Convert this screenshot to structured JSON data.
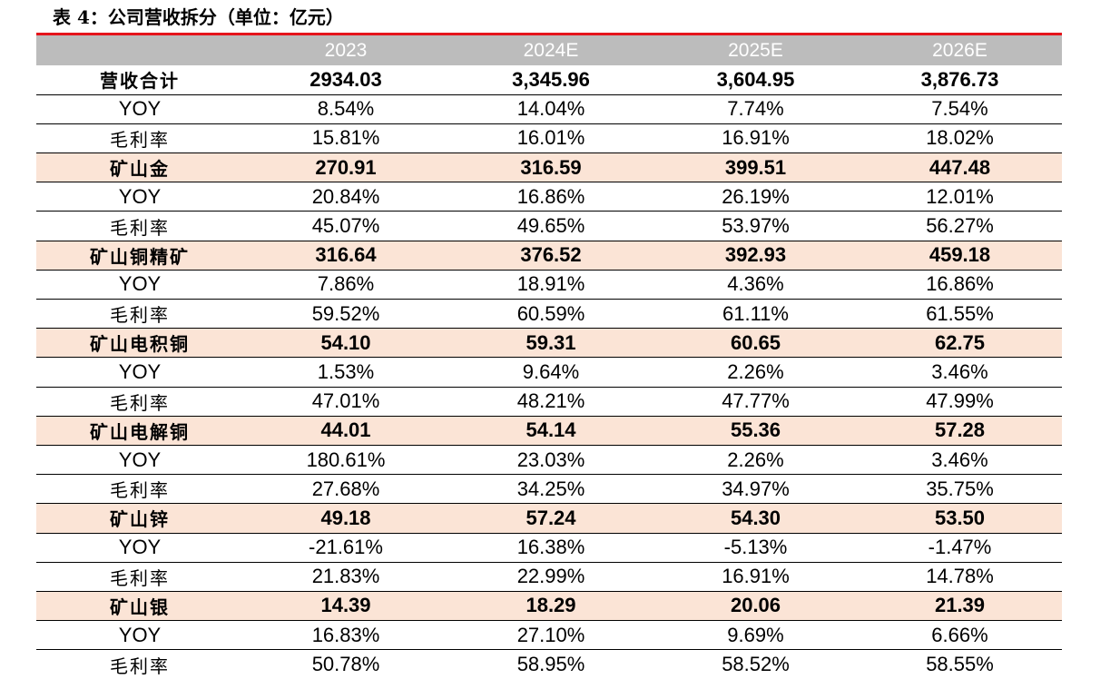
{
  "title": "表 4：公司营收拆分（单位：亿元）",
  "header": [
    "",
    "2023",
    "2024E",
    "2025E",
    "2026E"
  ],
  "rows": [
    {
      "label": "营收合计",
      "kind": "total",
      "values": [
        "2934.03",
        "3,345.96",
        "3,604.95",
        "3,876.73"
      ]
    },
    {
      "label": "YOY",
      "kind": "yoy",
      "values": [
        "8.54%",
        "14.04%",
        "7.74%",
        "7.54%"
      ]
    },
    {
      "label": "毛利率",
      "kind": "margin",
      "values": [
        "15.81%",
        "16.01%",
        "16.91%",
        "18.02%"
      ]
    },
    {
      "label": "矿山金",
      "kind": "segment",
      "values": [
        "270.91",
        "316.59",
        "399.51",
        "447.48"
      ]
    },
    {
      "label": "YOY",
      "kind": "yoy",
      "values": [
        "20.84%",
        "16.86%",
        "26.19%",
        "12.01%"
      ]
    },
    {
      "label": "毛利率",
      "kind": "margin",
      "values": [
        "45.07%",
        "49.65%",
        "53.97%",
        "56.27%"
      ]
    },
    {
      "label": "矿山铜精矿",
      "kind": "segment",
      "values": [
        "316.64",
        "376.52",
        "392.93",
        "459.18"
      ]
    },
    {
      "label": "YOY",
      "kind": "yoy",
      "values": [
        "7.86%",
        "18.91%",
        "4.36%",
        "16.86%"
      ]
    },
    {
      "label": "毛利率",
      "kind": "margin",
      "values": [
        "59.52%",
        "60.59%",
        "61.11%",
        "61.55%"
      ]
    },
    {
      "label": "矿山电积铜",
      "kind": "segment",
      "values": [
        "54.10",
        "59.31",
        "60.65",
        "62.75"
      ]
    },
    {
      "label": "YOY",
      "kind": "yoy",
      "values": [
        "1.53%",
        "9.64%",
        "2.26%",
        "3.46%"
      ]
    },
    {
      "label": "毛利率",
      "kind": "margin",
      "values": [
        "47.01%",
        "48.21%",
        "47.77%",
        "47.99%"
      ]
    },
    {
      "label": "矿山电解铜",
      "kind": "segment",
      "values": [
        "44.01",
        "54.14",
        "55.36",
        "57.28"
      ]
    },
    {
      "label": "YOY",
      "kind": "yoy",
      "values": [
        "180.61%",
        "23.03%",
        "2.26%",
        "3.46%"
      ]
    },
    {
      "label": "毛利率",
      "kind": "margin",
      "values": [
        "27.68%",
        "34.25%",
        "34.97%",
        "35.75%"
      ]
    },
    {
      "label": "矿山锌",
      "kind": "segment",
      "values": [
        "49.18",
        "57.24",
        "54.30",
        "53.50"
      ]
    },
    {
      "label": "YOY",
      "kind": "yoy",
      "values": [
        "-21.61%",
        "16.38%",
        "-5.13%",
        "-1.47%"
      ]
    },
    {
      "label": "毛利率",
      "kind": "margin",
      "values": [
        "21.83%",
        "22.99%",
        "16.91%",
        "14.78%"
      ]
    },
    {
      "label": "矿山银",
      "kind": "segment",
      "values": [
        "14.39",
        "18.29",
        "20.06",
        "21.39"
      ]
    },
    {
      "label": "YOY",
      "kind": "yoy",
      "values": [
        "16.83%",
        "27.10%",
        "9.69%",
        "6.66%"
      ]
    },
    {
      "label": "毛利率",
      "kind": "margin",
      "values": [
        "50.78%",
        "58.95%",
        "58.52%",
        "58.55%"
      ]
    }
  ],
  "colors": {
    "accent_line": "#e5141b",
    "header_bg": "#bcbcbc",
    "segment_bg": "#fbe4d6"
  }
}
